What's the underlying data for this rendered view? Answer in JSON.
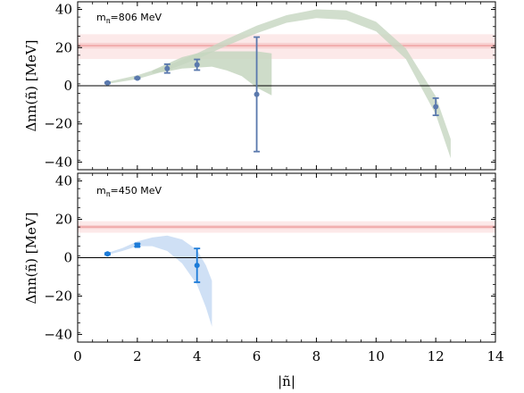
{
  "chart_data": [
    {
      "type": "scatter",
      "panel_label": "m<sub>π</sub>=806 MeV",
      "panel_label_main": "m",
      "panel_label_sub": "π",
      "panel_label_rest": "=806 MeV",
      "ylabel": "Δnn(ñ) [MeV]",
      "xlabel": "",
      "xlim": [
        0,
        14
      ],
      "ylim": [
        -44,
        44
      ],
      "yticks": [
        -40,
        -20,
        0,
        20,
        40
      ],
      "ytick_labels": [
        "−40",
        "−20",
        "0",
        "20",
        "40"
      ],
      "grid": false,
      "band": {
        "center": 21,
        "inner": [
          19.5,
          22.5
        ],
        "outer": [
          14,
          27
        ],
        "color": "#f4b6b6"
      },
      "points": [
        {
          "x": 1,
          "y": 1.5,
          "err": 0.3
        },
        {
          "x": 2,
          "y": 4.0,
          "err": 0.4
        },
        {
          "x": 3,
          "y": 9.0,
          "err": 2.3
        },
        {
          "x": 4,
          "y": 11.0,
          "err": 2.8
        },
        {
          "x": 6,
          "y": -4.5,
          "err": 30.0
        },
        {
          "x": 12,
          "y": -11.0,
          "err": 4.5
        }
      ],
      "curve_band": {
        "color": "#c5d6c0",
        "x": [
          1,
          2,
          3,
          4,
          5,
          6,
          7,
          8,
          9,
          10,
          11,
          12,
          12.5
        ],
        "low": [
          1.0,
          3.5,
          8.0,
          14.0,
          21.0,
          27.5,
          33.0,
          35.5,
          34.5,
          28.5,
          14.0,
          -15.0,
          -38.0
        ],
        "high": [
          2.0,
          5.5,
          10.5,
          17.0,
          24.5,
          31.5,
          37.0,
          40.0,
          39.5,
          33.5,
          19.5,
          -5.5,
          -28.0
        ]
      },
      "small_band": {
        "color": "#c5d6c0",
        "x": [
          2.5,
          3,
          3.5,
          4,
          4.5,
          5,
          5.5,
          6,
          6.5
        ],
        "low": [
          6.5,
          7.5,
          9.0,
          9.5,
          10.0,
          8.0,
          5.0,
          -1.0,
          -5.0
        ],
        "high": [
          8.0,
          11.5,
          15.0,
          17.0,
          18.0,
          18.0,
          18.0,
          18.0,
          17.0
        ]
      },
      "point_color": "#5a79ad"
    },
    {
      "type": "scatter",
      "panel_label_main": "m",
      "panel_label_sub": "π",
      "panel_label_rest": "=450 MeV",
      "ylabel": "Δnn(ñ) [MeV]",
      "xlabel": "|ñ|",
      "xlim": [
        0,
        14
      ],
      "ylim": [
        -44,
        44
      ],
      "yticks": [
        -40,
        -20,
        0,
        20,
        40
      ],
      "ytick_labels": [
        "−40",
        "−20",
        "0",
        "20",
        "40"
      ],
      "xticks": [
        0,
        2,
        4,
        6,
        8,
        10,
        12,
        14
      ],
      "xtick_labels": [
        "0",
        "2",
        "4",
        "6",
        "8",
        "10",
        "12",
        "14"
      ],
      "grid": false,
      "band": {
        "center": 16,
        "inner": [
          15,
          17
        ],
        "outer": [
          13,
          19
        ],
        "color": "#f4b6b6"
      },
      "points": [
        {
          "x": 1,
          "y": 2.0,
          "err": 0.4,
          "marker": "circle"
        },
        {
          "x": 2,
          "y": 6.5,
          "err": 0.7,
          "marker": "square"
        },
        {
          "x": 4,
          "y": -4.0,
          "err": 8.8,
          "marker": "circle"
        }
      ],
      "curve_band": {
        "color": "#c3d8f3",
        "x": [
          1,
          1.5,
          2,
          2.5,
          3,
          3.5,
          4,
          4.3,
          4.5
        ],
        "low": [
          1.5,
          3.5,
          6.0,
          6.0,
          3.5,
          -3.0,
          -14.0,
          -26.0,
          -36.0
        ],
        "high": [
          2.5,
          5.0,
          8.5,
          10.5,
          11.5,
          9.5,
          4.0,
          -4.0,
          -12.0
        ]
      },
      "point_color": "#1c7bd8"
    }
  ]
}
